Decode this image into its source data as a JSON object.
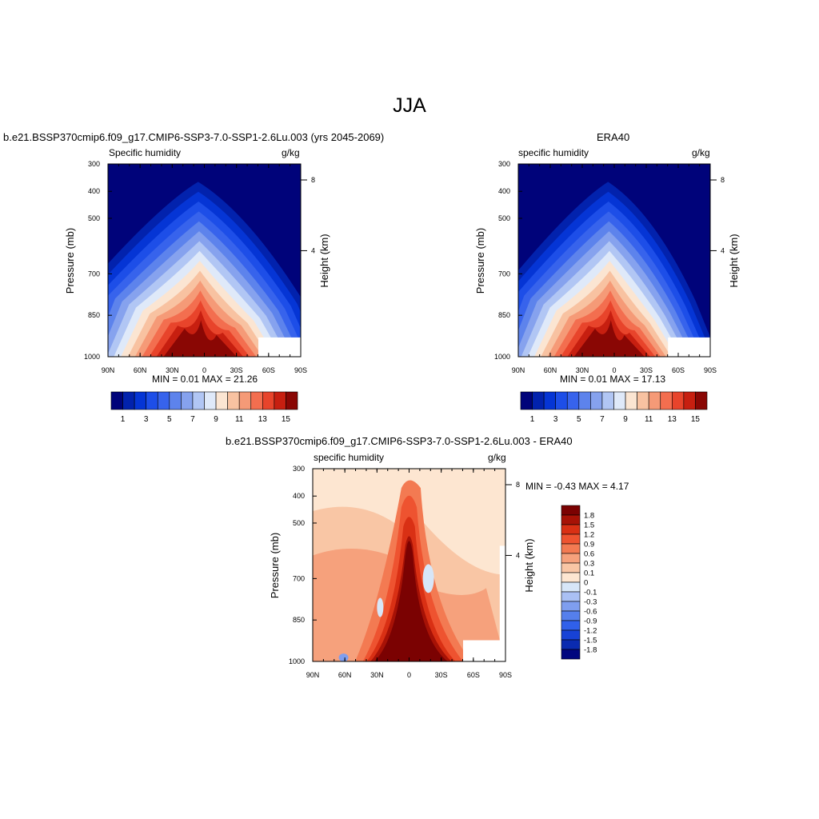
{
  "main_title": "JJA",
  "panel1": {
    "title": "b.e21.BSSP370cmip6.f09_g17.CMIP6-SSP3-7.0-SSP1-2.6Lu.003 (yrs 2045-2069)",
    "left_label": "Specific humidity",
    "right_label": "g/kg",
    "ylabel": "Pressure (mb)",
    "y2label": "Height (km)",
    "stats": "MIN =   0.01  MAX =  21.26"
  },
  "panel2": {
    "title": "ERA40",
    "left_label": "specific humidity",
    "right_label": "g/kg",
    "ylabel": "Pressure (mb)",
    "y2label": "Height (km)",
    "stats": "MIN =   0.01  MAX =  17.13"
  },
  "panel3": {
    "title": "b.e21.BSSP370cmip6.f09_g17.CMIP6-SSP3-7.0-SSP1-2.6Lu.003 - ERA40",
    "left_label": "specific humidity",
    "right_label": "g/kg",
    "ylabel": "Pressure (mb)",
    "y2label": "Height (km)",
    "stats": "MIN =  -0.43  MAX =   4.17"
  },
  "colors": {
    "humidity_scale": [
      "#00037a",
      "#0222ad",
      "#0535d5",
      "#1d4ee8",
      "#3763ec",
      "#5d83ec",
      "#86a2ee",
      "#b1c6f4",
      "#dfe9f9",
      "#fbe5d2",
      "#f8c2a1",
      "#f59a77",
      "#f36e4f",
      "#e8442b",
      "#c71f10",
      "#8a0704"
    ],
    "diff_scale": [
      "#00067f",
      "#0a2bb0",
      "#1742d6",
      "#3060ea",
      "#557fec",
      "#7f9eef",
      "#aac0f4",
      "#d7e6f8",
      "#fde6d1",
      "#f9c6a5",
      "#f6a17c",
      "#f37a52",
      "#ee5330",
      "#d93014",
      "#a71206",
      "#7b0202"
    ]
  },
  "chart_data": [
    {
      "type": "heatmap",
      "name": "panel1",
      "x_ticks": [
        "90N",
        "60N",
        "30N",
        "0",
        "30S",
        "60S",
        "90S"
      ],
      "y_ticks": [
        "300",
        "400",
        "500",
        "700",
        "850",
        "1000"
      ],
      "y2_ticks": [
        "8",
        "4"
      ],
      "colorbar_labels": [
        "1",
        "3",
        "5",
        "7",
        "9",
        "11",
        "13",
        "15"
      ],
      "min": 0.01,
      "max": 21.26
    },
    {
      "type": "heatmap",
      "name": "panel2",
      "x_ticks": [
        "90N",
        "60N",
        "30N",
        "0",
        "30S",
        "60S",
        "90S"
      ],
      "y_ticks": [
        "300",
        "400",
        "500",
        "700",
        "850",
        "1000"
      ],
      "y2_ticks": [
        "8",
        "4"
      ],
      "colorbar_labels": [
        "1",
        "3",
        "5",
        "7",
        "9",
        "11",
        "13",
        "15"
      ],
      "min": 0.01,
      "max": 17.13
    },
    {
      "type": "heatmap",
      "name": "panel3",
      "x_ticks": [
        "90N",
        "60N",
        "30N",
        "0",
        "30S",
        "60S",
        "90S"
      ],
      "y_ticks": [
        "300",
        "400",
        "500",
        "700",
        "850",
        "1000"
      ],
      "y2_ticks": [
        "8",
        "4"
      ],
      "colorbar_labels": [
        "1.8",
        "1.5",
        "1.2",
        "0.9",
        "0.6",
        "0.3",
        "0.1",
        "0",
        "-0.1",
        "-0.3",
        "-0.6",
        "-0.9",
        "-1.2",
        "-1.5",
        "-1.8"
      ],
      "min": -0.43,
      "max": 4.17
    }
  ]
}
